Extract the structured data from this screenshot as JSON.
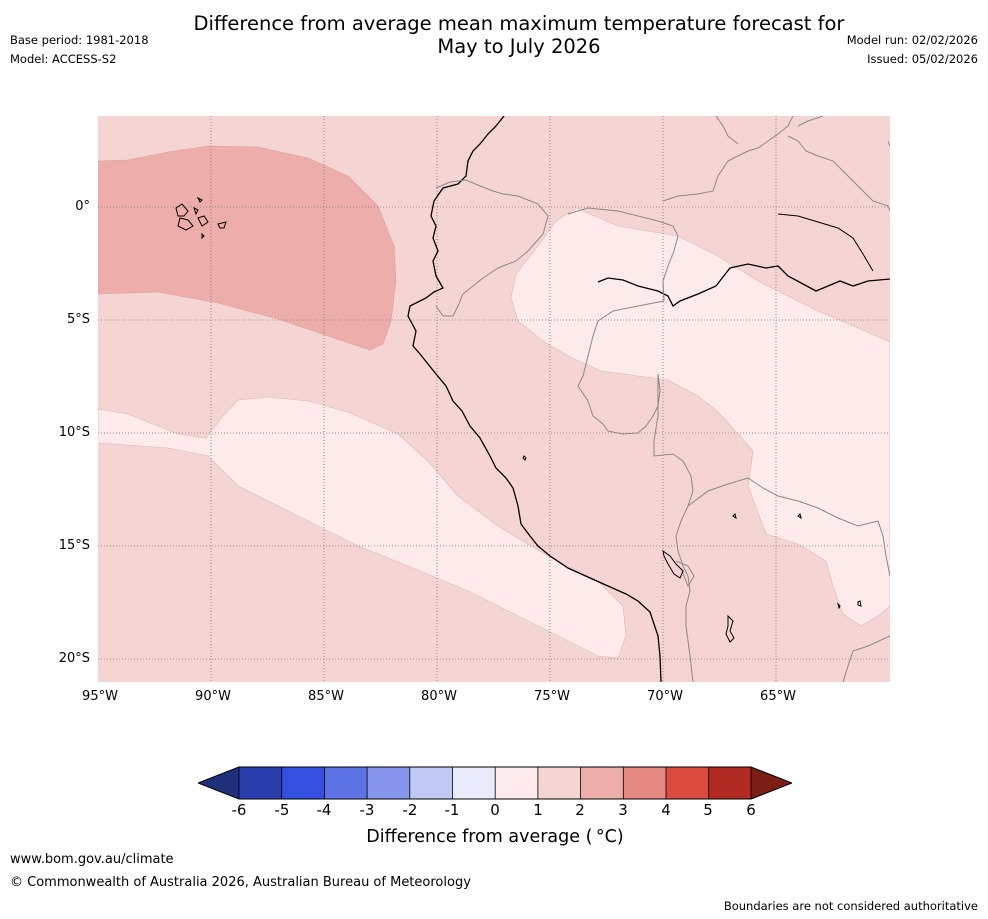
{
  "title_line1": "Difference from average mean maximum temperature forecast for",
  "title_line2": "May to July 2026",
  "base_period": "Base period: 1981-2018",
  "model": "Model: ACCESS-S2",
  "model_run": "Model run: 02/02/2026",
  "issued": "Issued: 05/02/2026",
  "lat_labels": [
    "0°",
    "5°S",
    "10°S",
    "15°S",
    "20°S"
  ],
  "lon_labels": [
    "95°W",
    "90°W",
    "85°W",
    "80°W",
    "75°W",
    "70°W",
    "65°W"
  ],
  "colorbar": {
    "ticks": [
      "-6",
      "-5",
      "-4",
      "-3",
      "-2",
      "-1",
      "0",
      "1",
      "2",
      "3",
      "4",
      "5",
      "6"
    ],
    "colors": [
      "#1f2f7a",
      "#283ead",
      "#3450e0",
      "#5c73e6",
      "#8596ec",
      "#c0c8f4",
      "#e8ebfb",
      "#fcebea",
      "#f5d5d3",
      "#edaeab",
      "#e68980",
      "#db4b3e",
      "#b12b22",
      "#7a1e16"
    ],
    "label": "Difference from average ( °C)"
  },
  "website": "www.bom.gov.au/climate",
  "copyright": "© Commonwealth of Australia 2026, Australian Bureau of Meteorology",
  "disclaimer": "Boundaries are not considered authoritative"
}
